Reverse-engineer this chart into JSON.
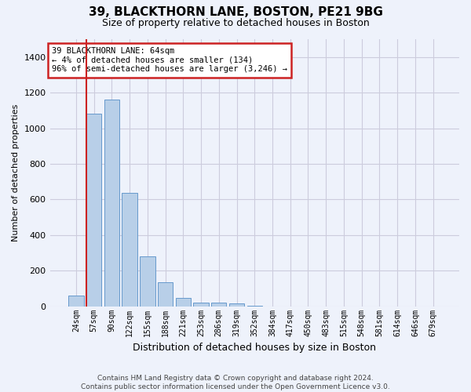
{
  "title": "39, BLACKTHORN LANE, BOSTON, PE21 9BG",
  "subtitle": "Size of property relative to detached houses in Boston",
  "xlabel": "Distribution of detached houses by size in Boston",
  "ylabel": "Number of detached properties",
  "bar_color": "#b8cfe8",
  "bar_edge_color": "#6699cc",
  "highlight_color": "#cc2222",
  "categories": [
    "24sqm",
    "57sqm",
    "90sqm",
    "122sqm",
    "155sqm",
    "188sqm",
    "221sqm",
    "253sqm",
    "286sqm",
    "319sqm",
    "352sqm",
    "384sqm",
    "417sqm",
    "450sqm",
    "483sqm",
    "515sqm",
    "548sqm",
    "581sqm",
    "614sqm",
    "646sqm",
    "679sqm"
  ],
  "values": [
    60,
    1080,
    1160,
    635,
    280,
    135,
    45,
    20,
    20,
    15,
    5,
    0,
    0,
    0,
    0,
    0,
    0,
    0,
    0,
    0,
    0
  ],
  "highlight_bar_index": 1,
  "annotation_line1": "39 BLACKTHORN LANE: 64sqm",
  "annotation_line2": "← 4% of detached houses are smaller (134)",
  "annotation_line3": "96% of semi-detached houses are larger (3,246) →",
  "ylim": [
    0,
    1500
  ],
  "yticks": [
    0,
    200,
    400,
    600,
    800,
    1000,
    1200,
    1400
  ],
  "footer": "Contains HM Land Registry data © Crown copyright and database right 2024.\nContains public sector information licensed under the Open Government Licence v3.0.",
  "background_color": "#eef2fb",
  "plot_bg_color": "#eef2fb",
  "grid_color": "#ccccdd",
  "figwidth": 6.0,
  "figheight": 5.0,
  "dpi": 100
}
